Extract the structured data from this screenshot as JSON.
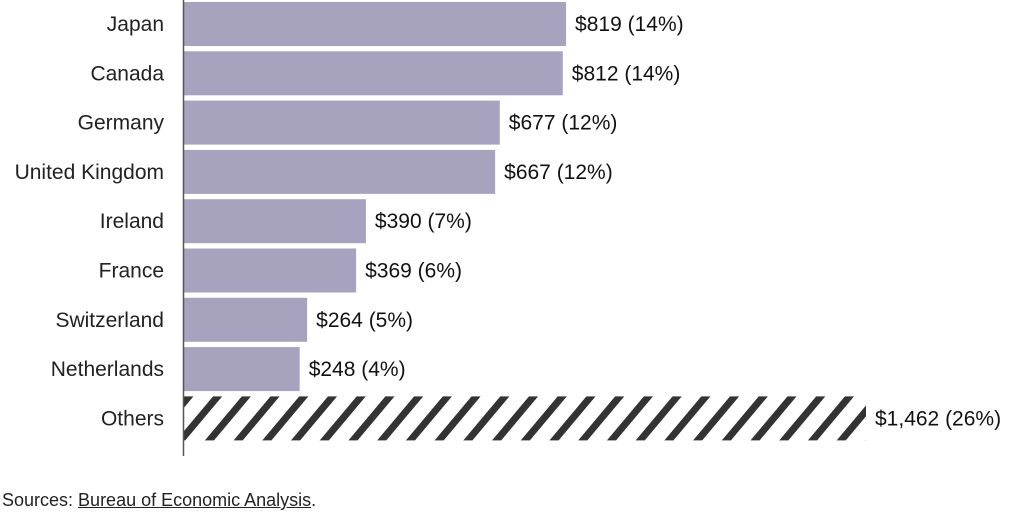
{
  "chart_data": {
    "type": "bar",
    "orientation": "horizontal",
    "categories": [
      "Japan",
      "Canada",
      "Germany",
      "United Kingdom",
      "Ireland",
      "France",
      "Switzerland",
      "Netherlands",
      "Others"
    ],
    "values": [
      819,
      812,
      677,
      667,
      390,
      369,
      264,
      248,
      1462
    ],
    "value_labels": [
      "$819 (14%)",
      "$812 (14%)",
      "$677 (12%)",
      "$667 (12%)",
      "$390 (7%)",
      "$369 (6%)",
      "$264 (5%)",
      "$248 (4%)",
      "$1,462 (26%)"
    ],
    "styles": [
      "solid",
      "solid",
      "solid",
      "solid",
      "solid",
      "solid",
      "solid",
      "solid",
      "hatched"
    ],
    "bar_color": "#a7a3be",
    "hatch_color": "#333333",
    "axis_color": "#555555",
    "grid": false,
    "legend": "none",
    "xlim": [
      0,
      1462
    ]
  },
  "footer": {
    "prefix": "Sources: ",
    "link": "Bureau of Economic Analysis",
    "suffix": "."
  }
}
